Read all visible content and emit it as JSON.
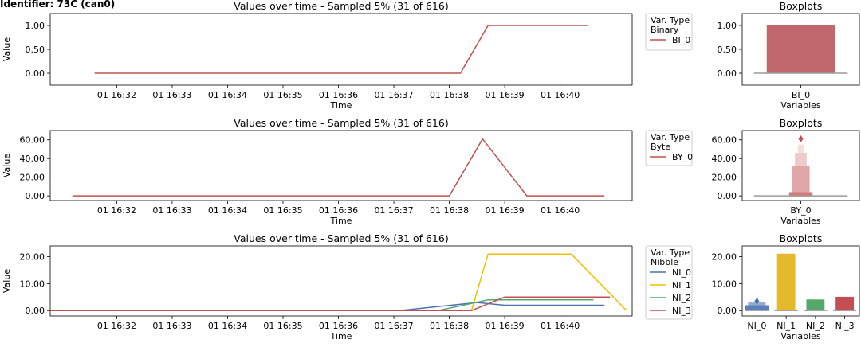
{
  "page": {
    "title": "Identifier: 73C (can0)"
  },
  "chart_data": [
    {
      "type": "line",
      "title": "Values over time - Sampled 5% (31 of 616)",
      "xlabel": "Time",
      "ylabel": "Value",
      "xticks": [
        "01 16:32",
        "01 16:33",
        "01 16:34",
        "01 16:35",
        "01 16:36",
        "01 16:37",
        "01 16:38",
        "01 16:39",
        "01 16:40"
      ],
      "xlim": [
        "16:30.8",
        "16:41.3"
      ],
      "ylim": [
        -0.25,
        1.25
      ],
      "yticks": [
        "0.00",
        "0.50",
        "1.00"
      ],
      "legend": {
        "title": "Var. Type",
        "subtitle": "Binary",
        "placement": "outside-right"
      },
      "series": [
        {
          "name": "BI_0",
          "color": "#c0504d",
          "x": [
            "16:31.6",
            "16:38.2",
            "16:38.7",
            "16:40.5"
          ],
          "y": [
            0,
            0,
            1,
            1
          ]
        }
      ]
    },
    {
      "type": "line",
      "title": "Values over time - Sampled 5% (31 of 616)",
      "xlabel": "Time",
      "ylabel": "Value",
      "xticks": [
        "01 16:32",
        "01 16:33",
        "01 16:34",
        "01 16:35",
        "01 16:36",
        "01 16:37",
        "01 16:38",
        "01 16:39",
        "01 16:40"
      ],
      "xlim": [
        "16:30.8",
        "16:41.3"
      ],
      "ylim": [
        -5,
        70
      ],
      "yticks": [
        "0.00",
        "20.00",
        "40.00",
        "60.00"
      ],
      "legend": {
        "title": "Var. Type",
        "subtitle": "Byte",
        "placement": "outside-right"
      },
      "series": [
        {
          "name": "BY_0",
          "color": "#c0504d",
          "x": [
            "16:31.2",
            "16:38.0",
            "16:38.6",
            "16:39.4",
            "16:40.8"
          ],
          "y": [
            0,
            0,
            61,
            0,
            0
          ]
        }
      ]
    },
    {
      "type": "line",
      "title": "Values over time - Sampled 5% (31 of 616)",
      "xlabel": "Time",
      "ylabel": "Value",
      "xticks": [
        "01 16:32",
        "01 16:33",
        "01 16:34",
        "01 16:35",
        "01 16:36",
        "01 16:37",
        "01 16:38",
        "01 16:39",
        "01 16:40"
      ],
      "xlim": [
        "16:30.8",
        "16:41.3"
      ],
      "ylim": [
        -2,
        24
      ],
      "yticks": [
        "0.00",
        "10.00",
        "20.00"
      ],
      "legend": {
        "title": "Var. Type",
        "subtitle": "Nibble",
        "placement": "outside-right"
      },
      "series": [
        {
          "name": "NI_0",
          "color": "#4c72b0",
          "x": [
            "16:30.8",
            "16:37.1",
            "16:38.5",
            "16:39.0",
            "16:40.8"
          ],
          "y": [
            0,
            0,
            3,
            2,
            2
          ]
        },
        {
          "name": "NI_1",
          "color": "#f0c000",
          "x": [
            "16:30.8",
            "16:38.4",
            "16:38.7",
            "16:40.2",
            "16:41.2"
          ],
          "y": [
            0,
            0,
            21,
            21,
            0
          ]
        },
        {
          "name": "NI_2",
          "color": "#55a868",
          "x": [
            "16:30.8",
            "16:37.8",
            "16:38.7",
            "16:40.6"
          ],
          "y": [
            0,
            0,
            4,
            4
          ]
        },
        {
          "name": "NI_3",
          "color": "#c44e52",
          "x": [
            "16:30.8",
            "16:38.4",
            "16:39.0",
            "16:40.9"
          ],
          "y": [
            0,
            0,
            5,
            5
          ]
        }
      ]
    },
    {
      "type": "bar",
      "title": "Boxplots",
      "xlabel": "Variables",
      "categories": [
        "BI_0"
      ],
      "ylim": [
        -0.25,
        1.25
      ],
      "yticks": [
        "0.00",
        "0.50",
        "1.00"
      ],
      "boxes": [
        {
          "name": "BI_0",
          "color": "#c0686b",
          "low": 0,
          "high": 1,
          "median": 0
        }
      ]
    },
    {
      "type": "bar",
      "title": "Boxplots",
      "xlabel": "Variables",
      "categories": [
        "BY_0"
      ],
      "ylim": [
        -5,
        70
      ],
      "yticks": [
        "0.00",
        "20.00",
        "40.00",
        "60.00"
      ],
      "boxes": [
        {
          "name": "BY_0",
          "color": "#c44e52",
          "median": 0,
          "outlier": 61,
          "letters": [
            {
              "low": 0,
              "high": 4,
              "opacity": 0.75
            },
            {
              "low": 4,
              "high": 32,
              "opacity": 0.5
            },
            {
              "low": 32,
              "high": 46,
              "opacity": 0.3
            },
            {
              "low": 46,
              "high": 55,
              "opacity": 0.18
            }
          ]
        }
      ]
    },
    {
      "type": "bar",
      "title": "Boxplots",
      "xlabel": "Variables",
      "categories": [
        "NI_0",
        "NI_1",
        "NI_2",
        "NI_3"
      ],
      "ylim": [
        -2,
        24
      ],
      "yticks": [
        "0.00",
        "10.00",
        "20.00"
      ],
      "boxes": [
        {
          "name": "NI_0",
          "color": "#4c72b0",
          "median": 0,
          "outlier": 3.5,
          "letters": [
            {
              "low": 0,
              "high": 2,
              "opacity": 0.9
            },
            {
              "low": 2,
              "high": 3,
              "opacity": 0.6
            }
          ]
        },
        {
          "name": "NI_1",
          "color": "#e4b92c",
          "low": 0,
          "high": 21,
          "median": 0
        },
        {
          "name": "NI_2",
          "color": "#55a868",
          "low": 0,
          "high": 4,
          "median": 0
        },
        {
          "name": "NI_3",
          "color": "#c44e52",
          "low": 0,
          "high": 5,
          "median": 0
        }
      ]
    }
  ]
}
